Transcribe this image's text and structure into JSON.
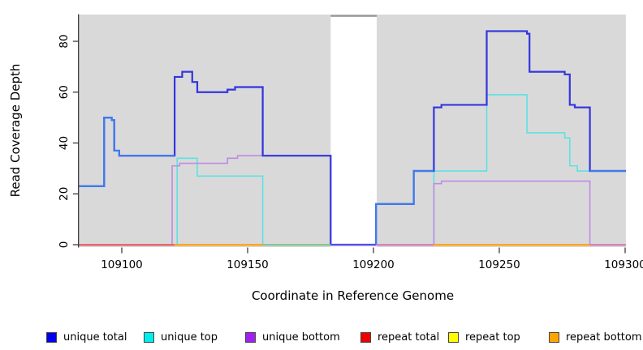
{
  "chart_data": {
    "type": "line",
    "style": "step-after",
    "title": "",
    "xlabel": "Coordinate in Reference Genome",
    "ylabel": "Read Coverage Depth",
    "xlim": [
      109083,
      109300
    ],
    "ylim": [
      0,
      90
    ],
    "x_ticks": [
      109100,
      109150,
      109200,
      109250,
      109300
    ],
    "x_tick_labels": [
      "109100",
      "109150",
      "109200",
      "109250",
      "109300"
    ],
    "y_ticks": [
      0,
      20,
      40,
      60,
      80
    ],
    "y_tick_labels": [
      "0",
      "20",
      "40",
      "60",
      "80"
    ],
    "grid": false,
    "panel_background": "#d9d9d9",
    "masked_region": {
      "from": 109183,
      "to": 109201,
      "fill": "#ffffff",
      "cap_color": "#9a9a9a"
    },
    "legend_position": "bottom",
    "legend": [
      {
        "label": "unique total",
        "color": "#0000EE"
      },
      {
        "label": "unique top",
        "color": "#00EEEE"
      },
      {
        "label": "unique bottom",
        "color": "#A020F0"
      },
      {
        "label": "repeat total",
        "color": "#EE0000"
      },
      {
        "label": "repeat top",
        "color": "#FFFF00"
      },
      {
        "label": "repeat bottom",
        "color": "#FFA500"
      }
    ],
    "series": [
      {
        "name": "unique top",
        "line_color": "#5EE1E4",
        "steps": [
          [
            109083,
            0
          ],
          [
            109122,
            34
          ],
          [
            109130,
            27
          ],
          [
            109156,
            0
          ],
          [
            109224,
            29
          ],
          [
            109245,
            59
          ],
          [
            109261,
            44
          ],
          [
            109276,
            42
          ],
          [
            109278,
            31
          ],
          [
            109281,
            29
          ],
          [
            109300,
            29
          ]
        ]
      },
      {
        "name": "unique bottom",
        "line_color": "#BE8BE4",
        "steps": [
          [
            109083,
            0
          ],
          [
            109120,
            31
          ],
          [
            109123,
            32
          ],
          [
            109142,
            34
          ],
          [
            109146,
            35
          ],
          [
            109183,
            0
          ],
          [
            109224,
            24
          ],
          [
            109227,
            25
          ],
          [
            109286,
            0
          ],
          [
            109300,
            0
          ]
        ]
      },
      {
        "name": "repeat total",
        "line_color": "#E25B74",
        "steps": [
          [
            109083,
            0
          ],
          [
            109300,
            0
          ]
        ]
      },
      {
        "name": "repeat top",
        "line_color": "#FFFF00",
        "steps": [
          [
            109083,
            0
          ],
          [
            109300,
            0
          ]
        ]
      },
      {
        "name": "repeat bottom",
        "line_color": "#FFA217",
        "steps": [
          [
            109083,
            0
          ],
          [
            109300,
            0
          ]
        ]
      },
      {
        "name": "unique total",
        "line_color": "#3434DF",
        "highlight_color": "#3D7BF0",
        "steps": [
          [
            109083,
            23
          ],
          [
            109093,
            50
          ],
          [
            109096,
            49
          ],
          [
            109097,
            37
          ],
          [
            109099,
            35
          ],
          [
            109121,
            66
          ],
          [
            109124,
            68
          ],
          [
            109128,
            64
          ],
          [
            109130,
            60
          ],
          [
            109142,
            61
          ],
          [
            109145,
            62
          ],
          [
            109156,
            35
          ],
          [
            109183,
            0
          ],
          [
            109201,
            16
          ],
          [
            109216,
            29
          ],
          [
            109224,
            54
          ],
          [
            109227,
            55
          ],
          [
            109245,
            84
          ],
          [
            109261,
            83
          ],
          [
            109262,
            68
          ],
          [
            109276,
            67
          ],
          [
            109278,
            55
          ],
          [
            109280,
            54
          ],
          [
            109286,
            29
          ],
          [
            109300,
            29
          ]
        ],
        "highlight_ranges": [
          {
            "from": 109083,
            "to": 109121,
            "lead": false
          },
          {
            "from": 109201,
            "to": 109224,
            "lead": true
          },
          {
            "from": 109286,
            "to": 109300,
            "lead": false
          }
        ]
      }
    ],
    "zero_line_segments": [
      {
        "from": 109083,
        "to": 109121,
        "color": "#E25B74"
      },
      {
        "from": 109121,
        "to": 109156,
        "color": "#FFA217"
      },
      {
        "from": 109156,
        "to": 109183,
        "color": "#7CC6A0"
      },
      {
        "from": 109183,
        "to": 109201,
        "color": "#5D55E6"
      },
      {
        "from": 109201,
        "to": 109224,
        "color": "#CE7BC9"
      },
      {
        "from": 109224,
        "to": 109286,
        "color": "#FFA217"
      },
      {
        "from": 109286,
        "to": 109300,
        "color": "#CE7BC9"
      }
    ],
    "axis_color": "#2b2b2b",
    "tick_label_color": "#000000"
  }
}
